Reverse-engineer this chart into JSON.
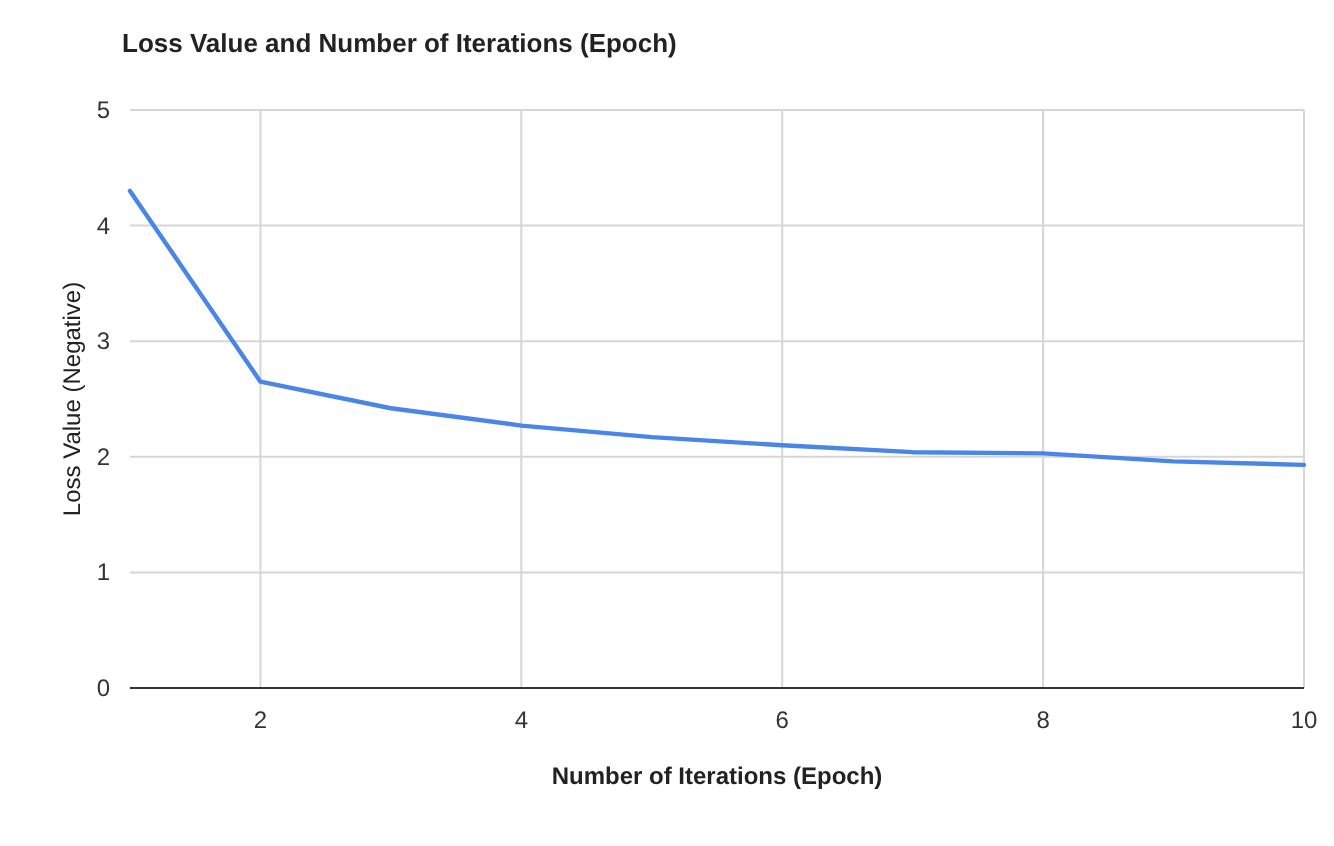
{
  "chart_data": {
    "type": "line",
    "title": "Loss Value and Number of Iterations (Epoch)",
    "xlabel": "Number of Iterations (Epoch)",
    "ylabel": "Loss Value (Negative)",
    "x": [
      1,
      2,
      3,
      4,
      5,
      6,
      7,
      8,
      9,
      10
    ],
    "series": [
      {
        "color": "#4a86e8",
        "values": [
          4.3,
          2.65,
          2.42,
          2.27,
          2.17,
          2.1,
          2.04,
          2.03,
          1.96,
          1.93
        ]
      }
    ],
    "xlim": [
      1,
      10
    ],
    "xticks": [
      2,
      4,
      6,
      8,
      10
    ],
    "ylim": [
      0,
      5
    ],
    "yticks": [
      0,
      1,
      2,
      3,
      4,
      5
    ],
    "grid": true,
    "marker": "none",
    "line_style": "solid"
  }
}
